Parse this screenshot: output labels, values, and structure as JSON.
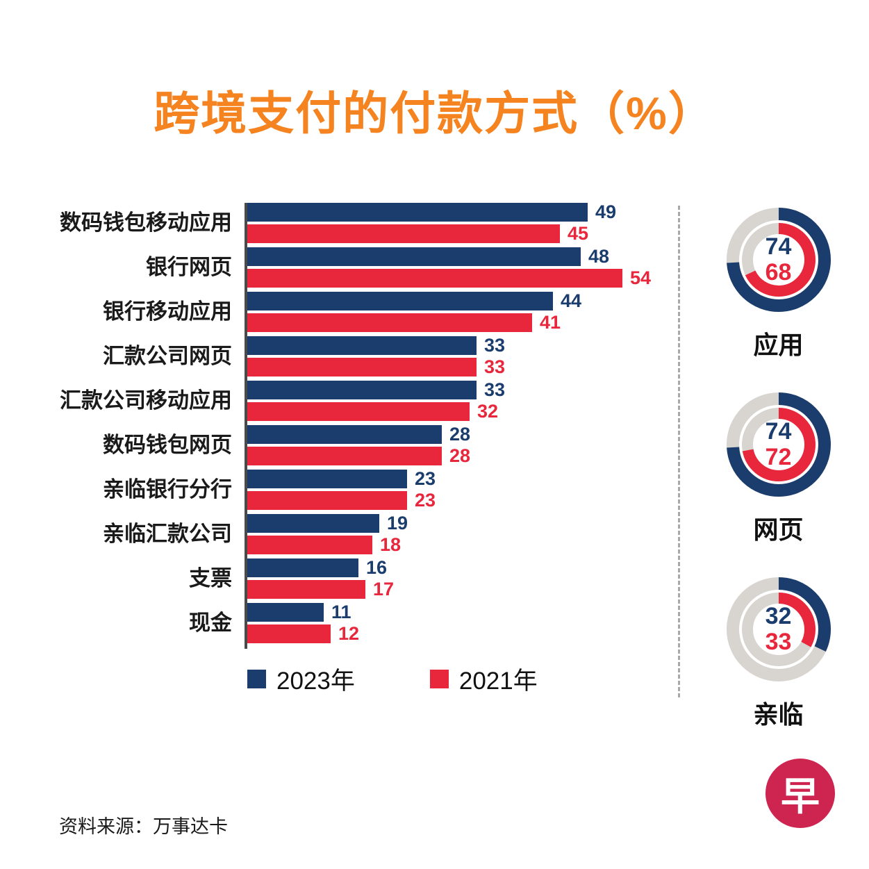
{
  "title": "跨境支付的付款方式（%）",
  "source": "资料来源：万事达卡",
  "logo": {
    "char": "早"
  },
  "colors": {
    "title": "#F5831F",
    "year2023": "#1B3D6D",
    "year2021": "#E8263C",
    "track": "#D8D4D0",
    "axis": "#4A4A4A",
    "logo_bg": "#CE2450"
  },
  "chart_data": [
    {
      "type": "bar",
      "orientation": "horizontal",
      "title": "跨境支付的付款方式（%）",
      "categories": [
        "数码钱包移动应用",
        "银行网页",
        "银行移动应用",
        "汇款公司网页",
        "汇款公司移动应用",
        "数码钱包网页",
        "亲临银行分行",
        "亲临汇款公司",
        "支票",
        "现金"
      ],
      "series": [
        {
          "name": "2023年",
          "color": "#1B3D6D",
          "values": [
            49,
            48,
            44,
            33,
            33,
            28,
            23,
            19,
            16,
            11
          ]
        },
        {
          "name": "2021年",
          "color": "#E8263C",
          "values": [
            45,
            54,
            41,
            33,
            32,
            28,
            23,
            18,
            17,
            12
          ]
        }
      ],
      "xlim": [
        0,
        54
      ],
      "value_labels": true,
      "grid": false,
      "legend_position": "bottom"
    },
    {
      "type": "donut-group",
      "max": 100,
      "donuts": [
        {
          "label": "应用",
          "value_2023": 74,
          "value_2021": 68
        },
        {
          "label": "网页",
          "value_2023": 74,
          "value_2021": 72
        },
        {
          "label": "亲临",
          "value_2023": 32,
          "value_2021": 33
        }
      ]
    }
  ]
}
